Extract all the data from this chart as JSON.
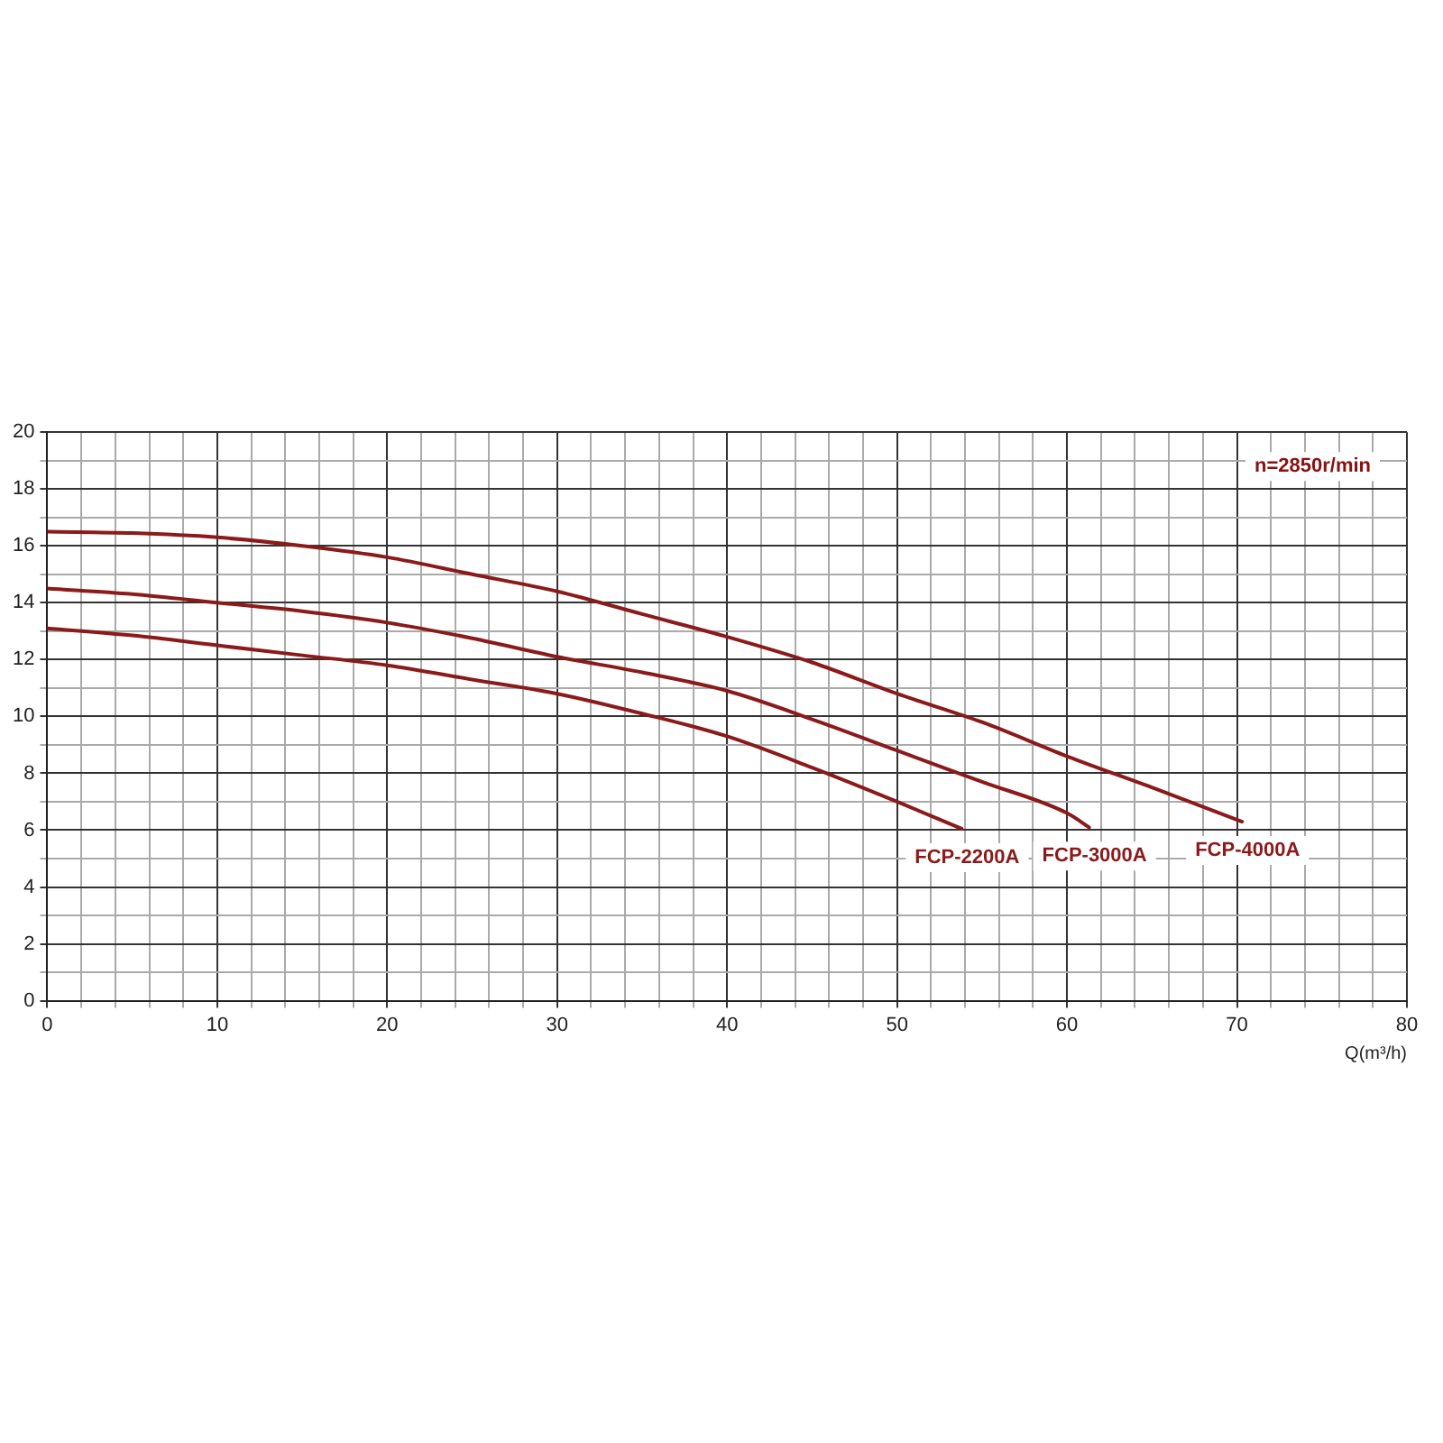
{
  "chart_data": {
    "type": "line",
    "xlabel": "Q(m³/h)",
    "annotations": [
      "n=2850r/min"
    ],
    "xlim": [
      0,
      80
    ],
    "ylim": [
      0,
      20
    ],
    "xticks": [
      0,
      {
        "value": 2,
        "label": null
      },
      {
        "value": 4,
        "label": null
      },
      {
        "value": 6,
        "label": null
      },
      {
        "value": 8,
        "label": null
      },
      10,
      {
        "value": 12,
        "label": null
      },
      {
        "value": 14,
        "label": null
      },
      {
        "value": 16,
        "label": null
      },
      {
        "value": 18,
        "label": null
      },
      20,
      {
        "value": 22,
        "label": null
      },
      {
        "value": 24,
        "label": null
      },
      {
        "value": 26,
        "label": null
      },
      {
        "value": 28,
        "label": null
      },
      30,
      {
        "value": 32,
        "label": null
      },
      {
        "value": 34,
        "label": null
      },
      {
        "value": 36,
        "label": null
      },
      {
        "value": 38,
        "label": null
      },
      40,
      {
        "value": 42,
        "label": null
      },
      {
        "value": 44,
        "label": null
      },
      {
        "value": 46,
        "label": null
      },
      {
        "value": 48,
        "label": null
      },
      50,
      {
        "value": 52,
        "label": null
      },
      {
        "value": 54,
        "label": null
      },
      {
        "value": 56,
        "label": null
      },
      {
        "value": 58,
        "label": null
      },
      60,
      {
        "value": 62,
        "label": null
      },
      {
        "value": 64,
        "label": null
      },
      {
        "value": 66,
        "label": null
      },
      {
        "value": 68,
        "label": null
      },
      70,
      {
        "value": 72,
        "label": null
      },
      {
        "value": 74,
        "label": null
      },
      {
        "value": 76,
        "label": null
      },
      {
        "value": 78,
        "label": null
      },
      80
    ],
    "yticks": [
      0,
      {
        "value": 1,
        "label": null
      },
      2,
      {
        "value": 3,
        "label": null
      },
      4,
      {
        "value": 5,
        "label": null
      },
      6,
      {
        "value": 7,
        "label": null
      },
      8,
      {
        "value": 9,
        "label": null
      },
      10,
      {
        "value": 11,
        "label": null
      },
      12,
      {
        "value": 13,
        "label": null
      },
      14,
      {
        "value": 15,
        "label": null
      },
      16,
      {
        "value": 17,
        "label": null
      },
      18,
      {
        "value": 19,
        "label": null
      },
      20
    ],
    "grid": true,
    "legend": false,
    "marker": "none",
    "line_style": "solid",
    "series": [
      {
        "name": "FCP-2200A",
        "color": "#8b1a1a",
        "x": [
          0,
          5,
          10,
          15,
          20,
          25,
          30,
          35,
          40,
          45,
          50,
          53.8
        ],
        "values": [
          13.1,
          12.85,
          12.5,
          12.15,
          11.8,
          11.3,
          10.8,
          10.1,
          9.3,
          8.2,
          7.0,
          6.05
        ]
      },
      {
        "name": "FCP-3000A",
        "color": "#8b1a1a",
        "x": [
          0,
          5,
          10,
          15,
          20,
          25,
          30,
          35,
          40,
          45,
          50,
          55,
          60,
          61.3
        ],
        "values": [
          14.5,
          14.3,
          14.0,
          13.7,
          13.3,
          12.75,
          12.1,
          11.55,
          10.9,
          9.9,
          8.8,
          7.7,
          6.6,
          6.1
        ]
      },
      {
        "name": "FCP-4000A",
        "color": "#8b1a1a",
        "x": [
          0,
          5,
          10,
          15,
          20,
          25,
          30,
          35,
          40,
          45,
          50,
          55,
          60,
          65,
          70.3
        ],
        "values": [
          16.5,
          16.45,
          16.3,
          16.0,
          15.6,
          15.0,
          14.4,
          13.6,
          12.8,
          11.9,
          10.8,
          9.8,
          8.6,
          7.5,
          6.3
        ]
      }
    ]
  }
}
